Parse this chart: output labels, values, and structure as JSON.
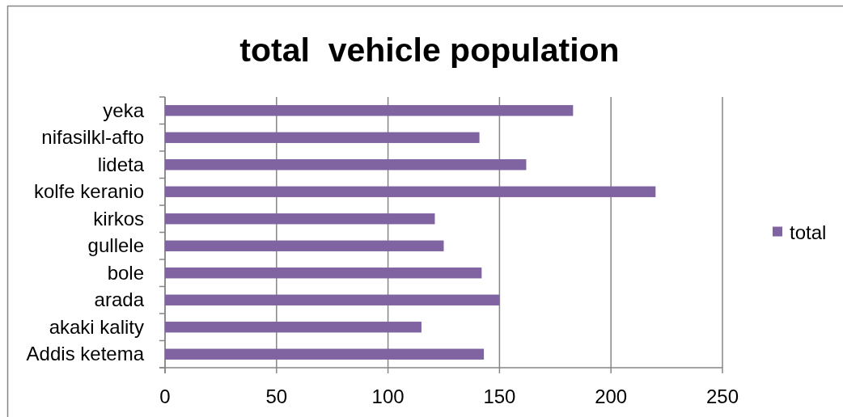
{
  "chart_data": {
    "type": "bar",
    "orientation": "horizontal",
    "title": "total  vehicle population",
    "categories": [
      "yeka",
      "nifasilkl-afto",
      "lideta",
      "kolfe keranio",
      "kirkos",
      "gullele",
      "bole",
      "arada",
      "akaki kality",
      "Addis ketema"
    ],
    "series": [
      {
        "name": "total",
        "color": "#8064a2",
        "values": [
          183,
          141,
          162,
          220,
          121,
          125,
          142,
          150,
          115,
          143
        ]
      }
    ],
    "xlim": [
      0,
      250
    ],
    "xticks": [
      0,
      50,
      100,
      150,
      200,
      250
    ],
    "grid": "x",
    "legend": "right"
  }
}
